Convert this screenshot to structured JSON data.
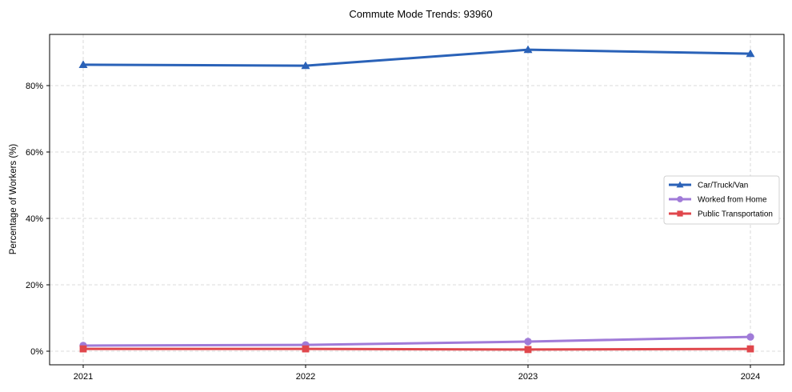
{
  "chart_data": {
    "type": "line",
    "title": "Commute Mode Trends: 93960",
    "xlabel": "",
    "ylabel": "Percentage of Workers (%)",
    "x": [
      "2021",
      "2022",
      "2023",
      "2024"
    ],
    "yticks": [
      "0%",
      "20%",
      "40%",
      "60%",
      "80%"
    ],
    "ytick_values": [
      0,
      20,
      40,
      60,
      80
    ],
    "ylim": [
      -3.9,
      95.3
    ],
    "grid": true,
    "legend_position": "center right",
    "series": [
      {
        "name": "Car/Truck/Van",
        "color": "#2a62b8",
        "marker": "triangle",
        "values": [
          86.3,
          86.0,
          90.8,
          89.6
        ]
      },
      {
        "name": "Worked from Home",
        "color": "#a07bd8",
        "marker": "circle",
        "values": [
          1.7,
          1.9,
          2.9,
          4.3
        ]
      },
      {
        "name": "Public Transportation",
        "color": "#e0474c",
        "marker": "square",
        "values": [
          0.7,
          0.7,
          0.5,
          0.7
        ]
      }
    ]
  }
}
